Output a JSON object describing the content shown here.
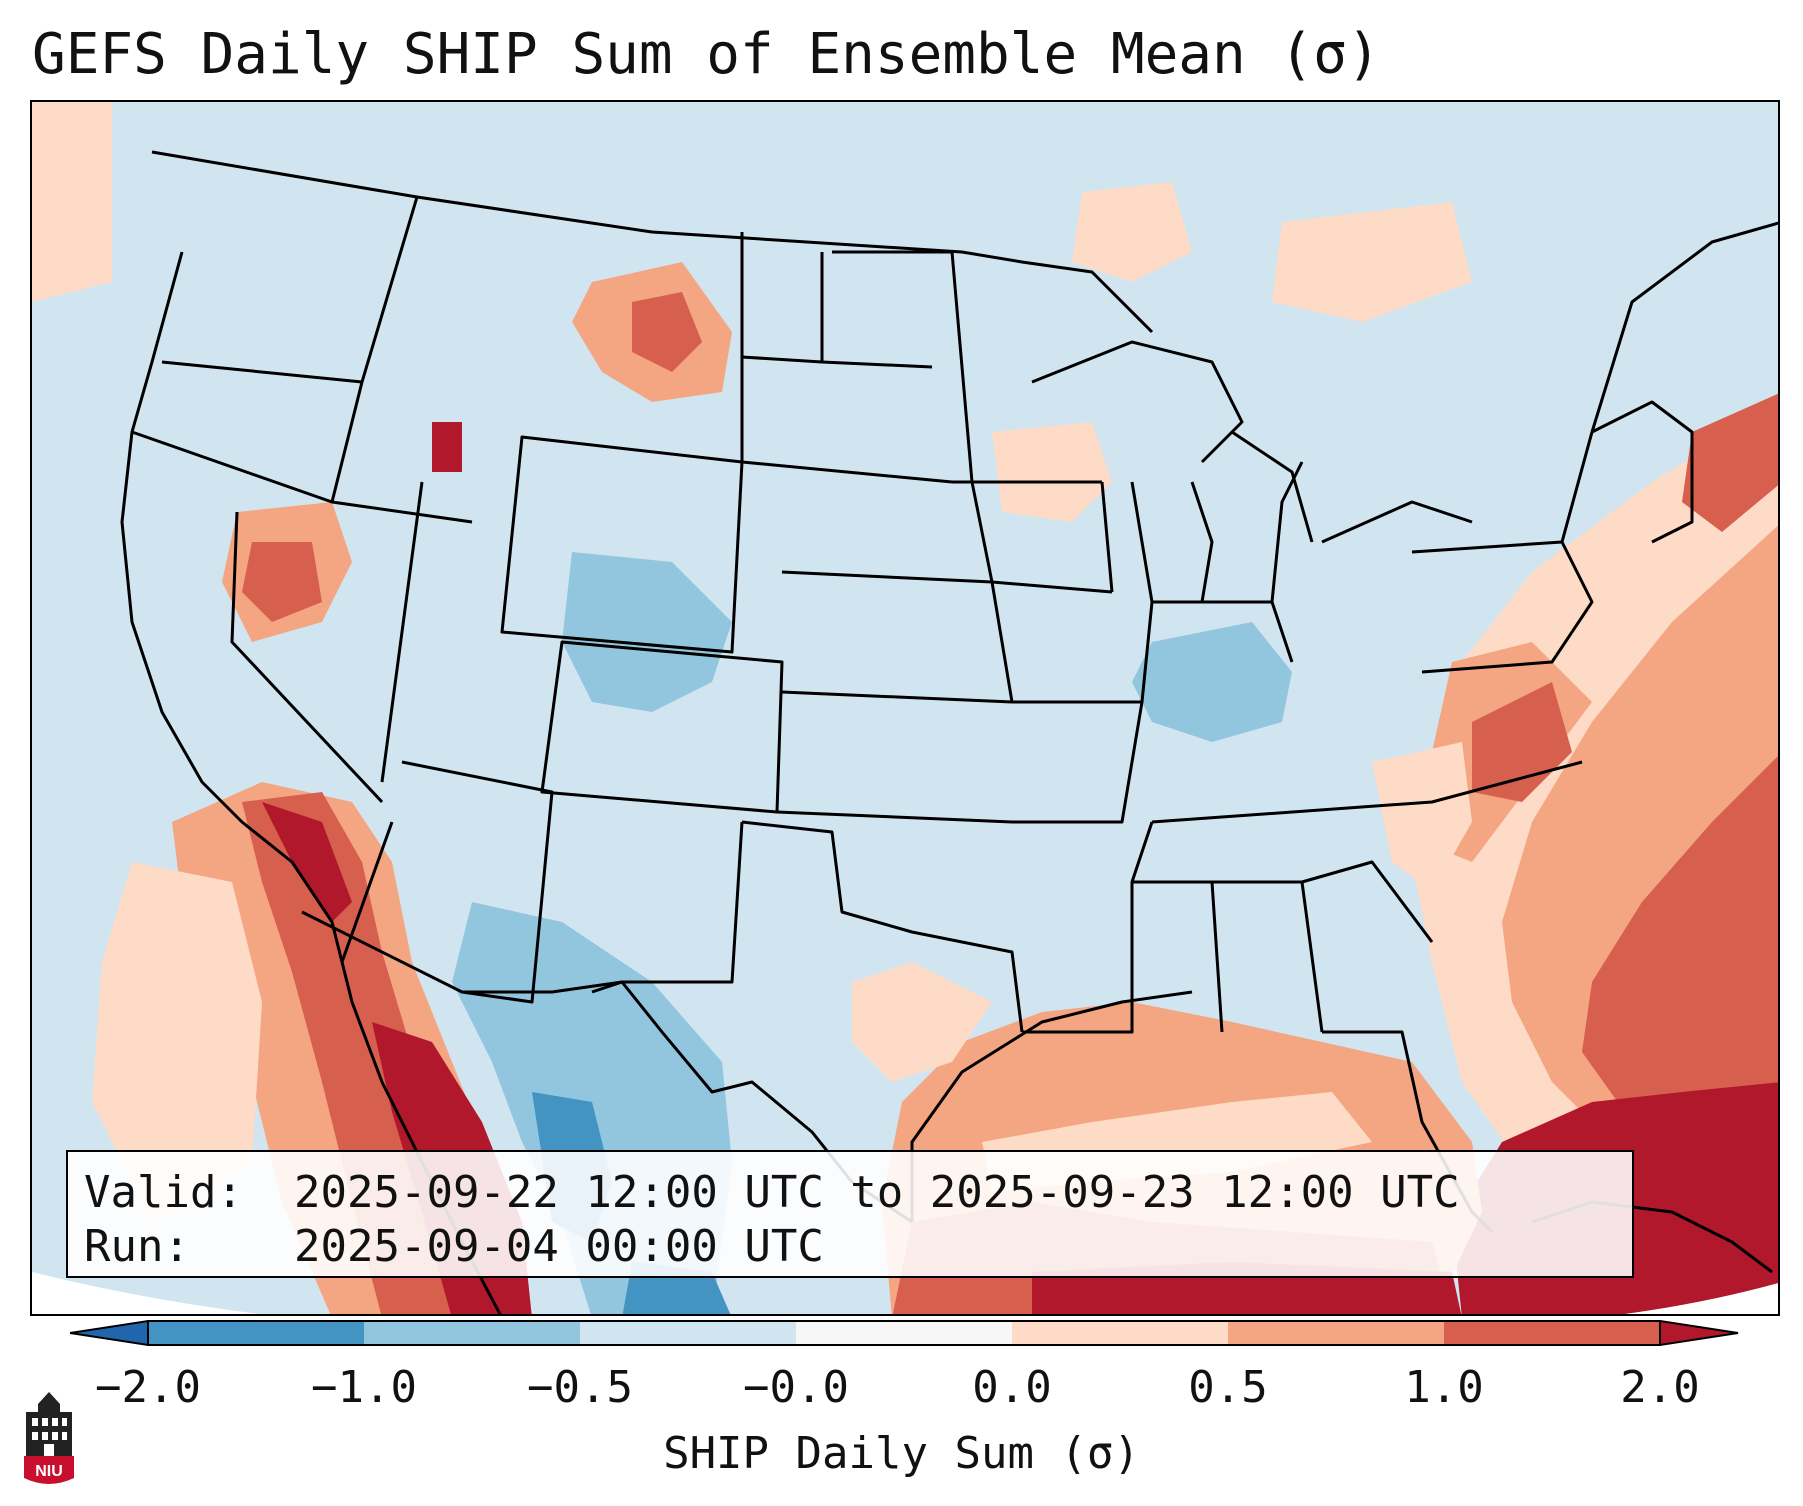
{
  "title": "GEFS Daily SHIP Sum of Ensemble Mean (σ)",
  "info": {
    "valid_label": "Valid:",
    "valid_value": "2025-09-22 12:00 UTC to 2025-09-23 12:00 UTC",
    "run_label": "Run:",
    "run_value": "2025-09-04 00:00 UTC"
  },
  "colorbar": {
    "label": "SHIP Daily Sum (σ)",
    "ticks": [
      "−2.0",
      "−1.0",
      "−0.5",
      "−0.0",
      "0.0",
      "0.5",
      "1.0",
      "2.0"
    ],
    "colors": {
      "lt_m2": "#2166ac",
      "m2_m1": "#4393c3",
      "m1_m05": "#92c5de",
      "m05_0": "#d1e5f0",
      "zero": "#f7f7f7",
      "0_05": "#fddbc7",
      "05_1": "#f4a582",
      "1_2": "#d6604d",
      "gt_2": "#b2182b"
    }
  },
  "logo": {
    "text": "NIU",
    "icon": "university-tower-icon"
  }
}
